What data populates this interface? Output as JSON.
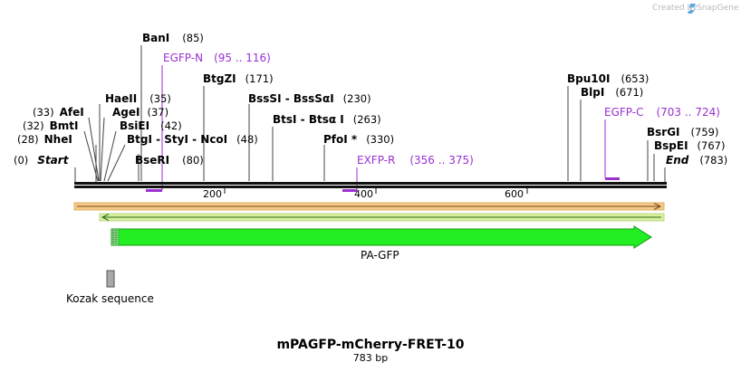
{
  "watermark": {
    "prefix": "Created by",
    "brand": "SnapGene",
    "brand_color": "#5aa7e0"
  },
  "sequence": {
    "name": "mPAGFP-mCherry-FRET-10",
    "length_label": "783 bp",
    "length": 783
  },
  "axis_ticks": [
    "200",
    "400",
    "600"
  ],
  "sites": [
    {
      "id": "start",
      "name": "Start",
      "pos": "(0)",
      "italic": true
    },
    {
      "id": "nhei",
      "name": "NheI",
      "pos": "(28)"
    },
    {
      "id": "bmti",
      "name": "BmtI",
      "pos": "(32)"
    },
    {
      "id": "afei",
      "name": "AfeI",
      "pos": "(33)"
    },
    {
      "id": "haeii",
      "name": "HaeII",
      "pos": "(35)"
    },
    {
      "id": "agei",
      "name": "AgeI",
      "pos": "(37)"
    },
    {
      "id": "bsiei",
      "name": "BsiEI",
      "pos": "(42)"
    },
    {
      "id": "btgi_group",
      "name": "BtgI  -  StyI  -  NcoI",
      "pos": "(48)"
    },
    {
      "id": "bseri",
      "name": "BseRI",
      "pos": "(80)"
    },
    {
      "id": "bani",
      "name": "BanI",
      "pos": "(85)"
    },
    {
      "id": "btgzi",
      "name": "BtgZI",
      "pos": "(171)"
    },
    {
      "id": "bsssi",
      "name": "BssSI  -  BssSαI",
      "pos": "(230)"
    },
    {
      "id": "btsi",
      "name": "BtsI  -  Btsα I",
      "pos": "(263)"
    },
    {
      "id": "pfoi",
      "name": "PfoI *",
      "pos": "(330)"
    },
    {
      "id": "bpu10i",
      "name": "Bpu10I",
      "pos": "(653)"
    },
    {
      "id": "blpi",
      "name": "BlpI",
      "pos": "(671)"
    },
    {
      "id": "bsrgi",
      "name": "BsrGI",
      "pos": "(759)"
    },
    {
      "id": "bspei",
      "name": "BspEI",
      "pos": "(767)"
    },
    {
      "id": "end",
      "name": "End",
      "pos": "(783)",
      "italic": true
    }
  ],
  "primers": [
    {
      "id": "egfp-n",
      "name": "EGFP-N",
      "range": "(95 .. 116)"
    },
    {
      "id": "exfp-r",
      "name": "EXFP-R",
      "range": "(356 .. 375)"
    },
    {
      "id": "egfp-c",
      "name": "EGFP-C",
      "range": "(703 .. 724)"
    }
  ],
  "features": [
    {
      "id": "pa-gfp",
      "name": "PA-GFP",
      "color": "#22ee22"
    },
    {
      "id": "kozak",
      "name": "Kozak sequence",
      "color": "#a8a8a8"
    }
  ],
  "colors": {
    "primer": "#9b30d0",
    "orf_fill": "#f4c98a",
    "orf_rev_fill": "#d8f0a0"
  }
}
